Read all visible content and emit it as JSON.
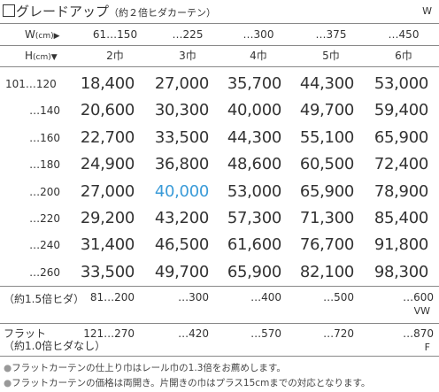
{
  "title": {
    "main": "グレードアップ",
    "sub": "（約２倍ヒダカーテン）",
    "unit": "W"
  },
  "width_header": {
    "label": "W",
    "unit": "(cm)",
    "arrow": "▶",
    "cols": [
      "61…150",
      "…225",
      "…300",
      "…375",
      "…450"
    ]
  },
  "height_header": {
    "label": "H",
    "unit": "(cm)",
    "arrow": "▼",
    "cols": [
      "2巾",
      "3巾",
      "4巾",
      "5巾",
      "6巾"
    ]
  },
  "rows": [
    {
      "height": "101…120",
      "prices": [
        "18,400",
        "27,000",
        "35,700",
        "44,300",
        "53,000"
      ]
    },
    {
      "height": "…140",
      "prices": [
        "20,600",
        "30,300",
        "40,000",
        "49,700",
        "59,400"
      ]
    },
    {
      "height": "…160",
      "prices": [
        "22,700",
        "33,500",
        "44,300",
        "55,100",
        "65,900"
      ]
    },
    {
      "height": "…180",
      "prices": [
        "24,900",
        "36,800",
        "48,600",
        "60,500",
        "72,400"
      ]
    },
    {
      "height": "…200",
      "prices": [
        "27,000",
        "40,000",
        "53,000",
        "65,900",
        "78,900"
      ]
    },
    {
      "height": "…220",
      "prices": [
        "29,200",
        "43,200",
        "57,300",
        "71,300",
        "85,400"
      ]
    },
    {
      "height": "…240",
      "prices": [
        "31,400",
        "46,500",
        "61,600",
        "76,700",
        "91,800"
      ]
    },
    {
      "height": "…260",
      "prices": [
        "33,500",
        "49,700",
        "65,900",
        "82,100",
        "98,300"
      ]
    }
  ],
  "highlight_color": "#3a9bd8",
  "pleat15": {
    "label": "（約1.5倍ヒダ）",
    "cols": [
      "81…200",
      "…300",
      "…400",
      "…500",
      "…600"
    ],
    "unit": "VW"
  },
  "flat": {
    "label1": "フラット",
    "label2": "（約1.0倍ヒダなし）",
    "cols": [
      "121…270",
      "…420",
      "…570",
      "…720",
      "…870"
    ],
    "unit": "F"
  },
  "notes": [
    "フラットカーテンの仕上り巾はレール巾の1.3倍をお薦めします。",
    "フラットカーテンの価格は両開き。片開きの巾はプラス15cmまでの対応となります。"
  ]
}
